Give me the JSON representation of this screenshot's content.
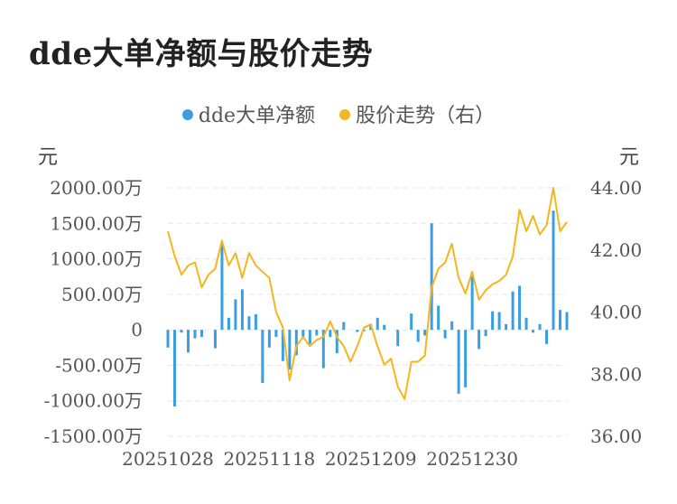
{
  "page": {
    "title": "dde大单净额与股价走势"
  },
  "legend": {
    "items": [
      {
        "label": "dde大单净额",
        "color": "#3a9ee4"
      },
      {
        "label": "股价走势（右）",
        "color": "#f5b51d"
      }
    ]
  },
  "axes": {
    "left_unit": "元",
    "right_unit": "元"
  },
  "chart_data": {
    "type": "bar+line",
    "title": "dde大单净额与股价走势",
    "x_tick_labels": [
      "20251028",
      "20251118",
      "20251209",
      "20251230"
    ],
    "x_tick_indices": [
      0,
      15,
      30,
      45
    ],
    "y_left_ticks": [
      "2000.00万",
      "1500.00万",
      "1000.00万",
      "500.00万",
      "0",
      "-500.00万",
      "-1000.00万",
      "-1500.00万"
    ],
    "y_left_range": [
      -1500,
      2000
    ],
    "y_left_unit": "万元",
    "y_right_ticks": [
      "44.00",
      "42.00",
      "40.00",
      "38.00",
      "36.00"
    ],
    "y_right_range": [
      36,
      44
    ],
    "grid": true,
    "legend_position": "top-center",
    "series": [
      {
        "name": "dde大单净额",
        "kind": "bar",
        "axis": "left",
        "color": "#3a9ee4",
        "values": [
          -250,
          -1080,
          -40,
          -320,
          -120,
          -100,
          0,
          -260,
          1230,
          170,
          430,
          570,
          190,
          220,
          -750,
          -250,
          -100,
          -440,
          -560,
          -360,
          -100,
          -200,
          -80,
          -540,
          -100,
          -330,
          110,
          0,
          -30,
          -20,
          80,
          170,
          70,
          0,
          -230,
          0,
          230,
          -170,
          -80,
          1500,
          340,
          -120,
          120,
          -900,
          -810,
          760,
          -270,
          -90,
          260,
          250,
          80,
          540,
          620,
          170,
          -40,
          80,
          -200,
          1680,
          280,
          250
        ]
      },
      {
        "name": "股价走势（右）",
        "kind": "line",
        "axis": "right",
        "color": "#f5b51d",
        "values": [
          42.6,
          41.8,
          41.2,
          41.5,
          41.6,
          40.8,
          41.2,
          41.4,
          42.3,
          41.5,
          41.9,
          41.1,
          41.9,
          41.5,
          41.3,
          41.1,
          40.0,
          39.5,
          37.8,
          38.9,
          39.2,
          38.9,
          39.1,
          39.2,
          39.7,
          39.2,
          38.9,
          38.4,
          38.9,
          39.5,
          39.6,
          38.9,
          38.3,
          38.5,
          37.6,
          37.2,
          38.4,
          38.4,
          38.6,
          40.8,
          41.4,
          41.6,
          42.2,
          41.1,
          40.6,
          41.3,
          40.4,
          40.7,
          40.9,
          41.0,
          41.2,
          41.8,
          43.3,
          42.6,
          43.1,
          42.5,
          42.8,
          44.0,
          42.6,
          42.9
        ]
      }
    ]
  }
}
